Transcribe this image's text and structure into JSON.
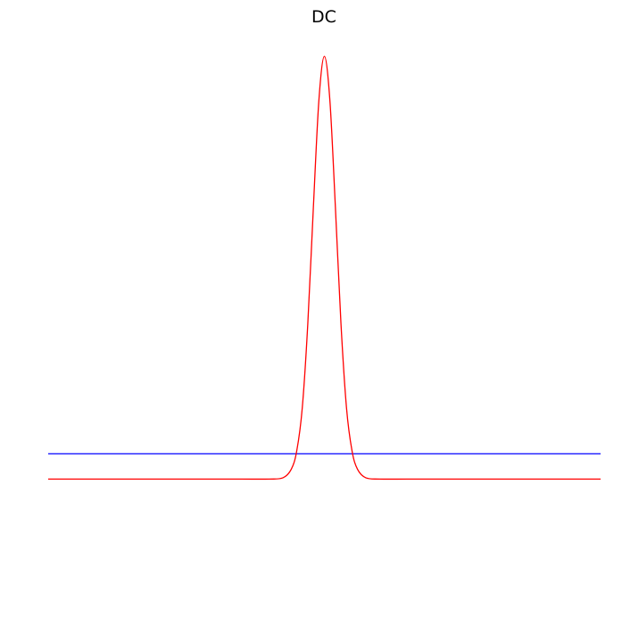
{
  "chart_data": {
    "type": "line",
    "title": "DC",
    "xlabel": "",
    "ylabel": "",
    "grid": false,
    "axes_visible": false,
    "xlim": [
      -1,
      1
    ],
    "ylim": [
      -0.35,
      1.07
    ],
    "x": [
      -1,
      -0.9,
      -0.8,
      -0.7,
      -0.6,
      -0.5,
      -0.4,
      -0.3,
      -0.2,
      -0.15,
      -0.12,
      -0.1,
      -0.08,
      -0.06,
      -0.04,
      -0.02,
      0,
      0.02,
      0.04,
      0.06,
      0.08,
      0.1,
      0.12,
      0.15,
      0.2,
      0.3,
      0.4,
      0.5,
      0.6,
      0.7,
      0.8,
      0.9,
      1
    ],
    "series": [
      {
        "color": "#0000ff",
        "values": [
          0.06,
          0.06,
          0.06,
          0.06,
          0.06,
          0.06,
          0.06,
          0.06,
          0.06,
          0.06,
          0.06,
          0.06,
          0.06,
          0.06,
          0.06,
          0.06,
          0.06,
          0.06,
          0.06,
          0.06,
          0.06,
          0.06,
          0.06,
          0.06,
          0.06,
          0.06,
          0.06,
          0.06,
          0.06,
          0.06,
          0.06,
          0.06,
          0.06
        ]
      },
      {
        "color": "#ff0000",
        "values": [
          0.0,
          0.0,
          0.0,
          0.0,
          0.0,
          0.0,
          0.0,
          0.0,
          0.0,
          0.003,
          0.023,
          0.067,
          0.169,
          0.368,
          0.641,
          0.895,
          1.0,
          0.895,
          0.641,
          0.368,
          0.169,
          0.067,
          0.023,
          0.003,
          0.0,
          0.0,
          0.0,
          0.0,
          0.0,
          0.0,
          0.0,
          0.0,
          0.0
        ]
      }
    ]
  }
}
